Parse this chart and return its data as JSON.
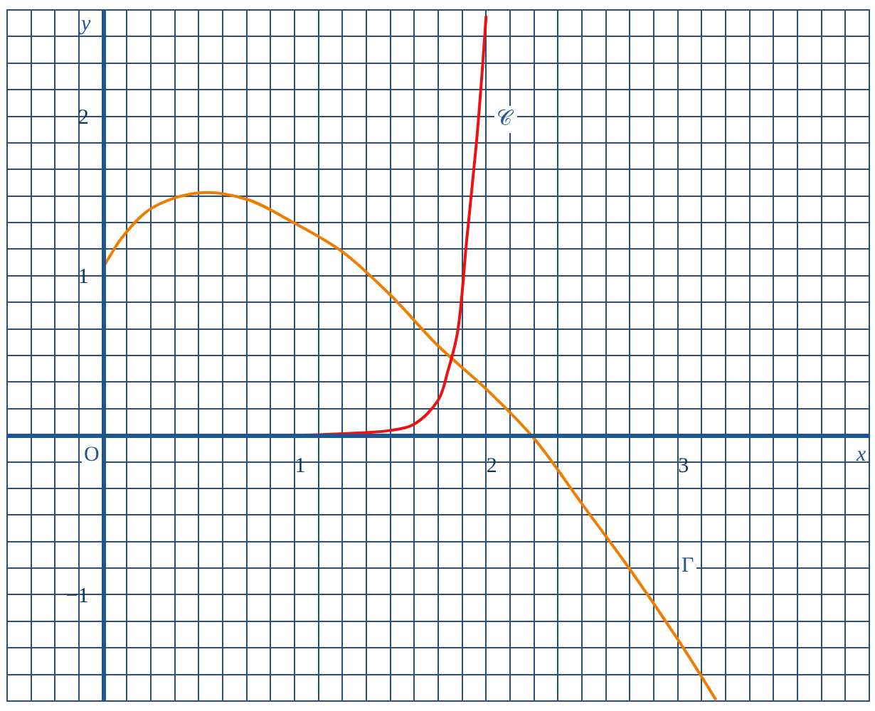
{
  "chart_data": {
    "type": "line",
    "xlabel": "x",
    "ylabel": "y",
    "xlim": [
      -0.5,
      4
    ],
    "ylim": [
      -1.667,
      2.667
    ],
    "xticks": [
      {
        "value": -0.5,
        "label": null
      },
      {
        "value": -0.375,
        "label": null
      },
      {
        "value": -0.25,
        "label": null
      },
      {
        "value": -0.125,
        "label": null
      },
      {
        "value": 0,
        "label": null
      },
      {
        "value": 0.125,
        "label": null
      },
      {
        "value": 0.25,
        "label": null
      },
      {
        "value": 0.375,
        "label": null
      },
      {
        "value": 0.5,
        "label": null
      },
      {
        "value": 0.625,
        "label": null
      },
      {
        "value": 0.75,
        "label": null
      },
      {
        "value": 0.875,
        "label": null
      },
      1,
      {
        "value": 1.125,
        "label": null
      },
      {
        "value": 1.25,
        "label": null
      },
      {
        "value": 1.375,
        "label": null
      },
      {
        "value": 1.5,
        "label": null
      },
      {
        "value": 1.625,
        "label": null
      },
      {
        "value": 1.75,
        "label": null
      },
      {
        "value": 1.875,
        "label": null
      },
      2,
      {
        "value": 2.125,
        "label": null
      },
      {
        "value": 2.25,
        "label": null
      },
      {
        "value": 2.375,
        "label": null
      },
      {
        "value": 2.5,
        "label": null
      },
      {
        "value": 2.625,
        "label": null
      },
      {
        "value": 2.75,
        "label": null
      },
      {
        "value": 2.875,
        "label": null
      },
      3,
      {
        "value": 3.125,
        "label": null
      },
      {
        "value": 3.25,
        "label": null
      },
      {
        "value": 3.375,
        "label": null
      },
      {
        "value": 3.5,
        "label": null
      },
      {
        "value": 3.625,
        "label": null
      },
      {
        "value": 3.75,
        "label": null
      },
      {
        "value": 3.875,
        "label": null
      },
      {
        "value": 4,
        "label": null
      }
    ],
    "yticks": [
      {
        "value": -1.667,
        "label": null
      },
      {
        "value": -1.5,
        "label": null
      },
      {
        "value": -1.333,
        "label": null
      },
      {
        "value": -1.167,
        "label": null
      },
      -1,
      {
        "value": -0.833,
        "label": null
      },
      {
        "value": -0.667,
        "label": null
      },
      {
        "value": -0.5,
        "label": null
      },
      {
        "value": -0.333,
        "label": null
      },
      {
        "value": -0.167,
        "label": null
      },
      {
        "value": 0,
        "label": null
      },
      {
        "value": 0.167,
        "label": null
      },
      {
        "value": 0.333,
        "label": null
      },
      {
        "value": 0.5,
        "label": null
      },
      {
        "value": 0.667,
        "label": null
      },
      {
        "value": 0.833,
        "label": null
      },
      1,
      {
        "value": 1.167,
        "label": null
      },
      {
        "value": 1.333,
        "label": null
      },
      {
        "value": 1.5,
        "label": null
      },
      {
        "value": 1.667,
        "label": null
      },
      {
        "value": 1.833,
        "label": null
      },
      2,
      {
        "value": 2.167,
        "label": null
      },
      {
        "value": 2.333,
        "label": null
      },
      {
        "value": 2.5,
        "label": null
      },
      {
        "value": 2.667,
        "label": null
      }
    ],
    "grid": true,
    "marker": "none",
    "line_style": "solid",
    "series": [
      {
        "color": "#f07d00",
        "x": [
          0,
          0.05,
          0.1,
          0.25,
          0.5,
          0.75,
          1,
          1.25,
          1.5,
          1.75,
          2,
          2.25,
          2.5,
          2.75,
          3,
          3.2
        ],
        "values": [
          1.05,
          1.15,
          1.24,
          1.42,
          1.52,
          1.48,
          1.33,
          1.15,
          0.88,
          0.56,
          0.29,
          -0.02,
          -0.43,
          -0.84,
          -1.28,
          -1.66
        ]
      },
      {
        "color": "#ee1111",
        "x": [
          0,
          0.5,
          1,
          1.25,
          1.5,
          1.625,
          1.75,
          1.8,
          1.85,
          1.9,
          1.95,
          1.98,
          2.0
        ],
        "values": [
          0,
          0,
          0,
          0.01,
          0.03,
          0.07,
          0.22,
          0.4,
          0.64,
          1.24,
          1.84,
          2.29,
          2.63
        ]
      }
    ],
    "annotations": [
      "O",
      "𝒞",
      "Γ"
    ]
  }
}
